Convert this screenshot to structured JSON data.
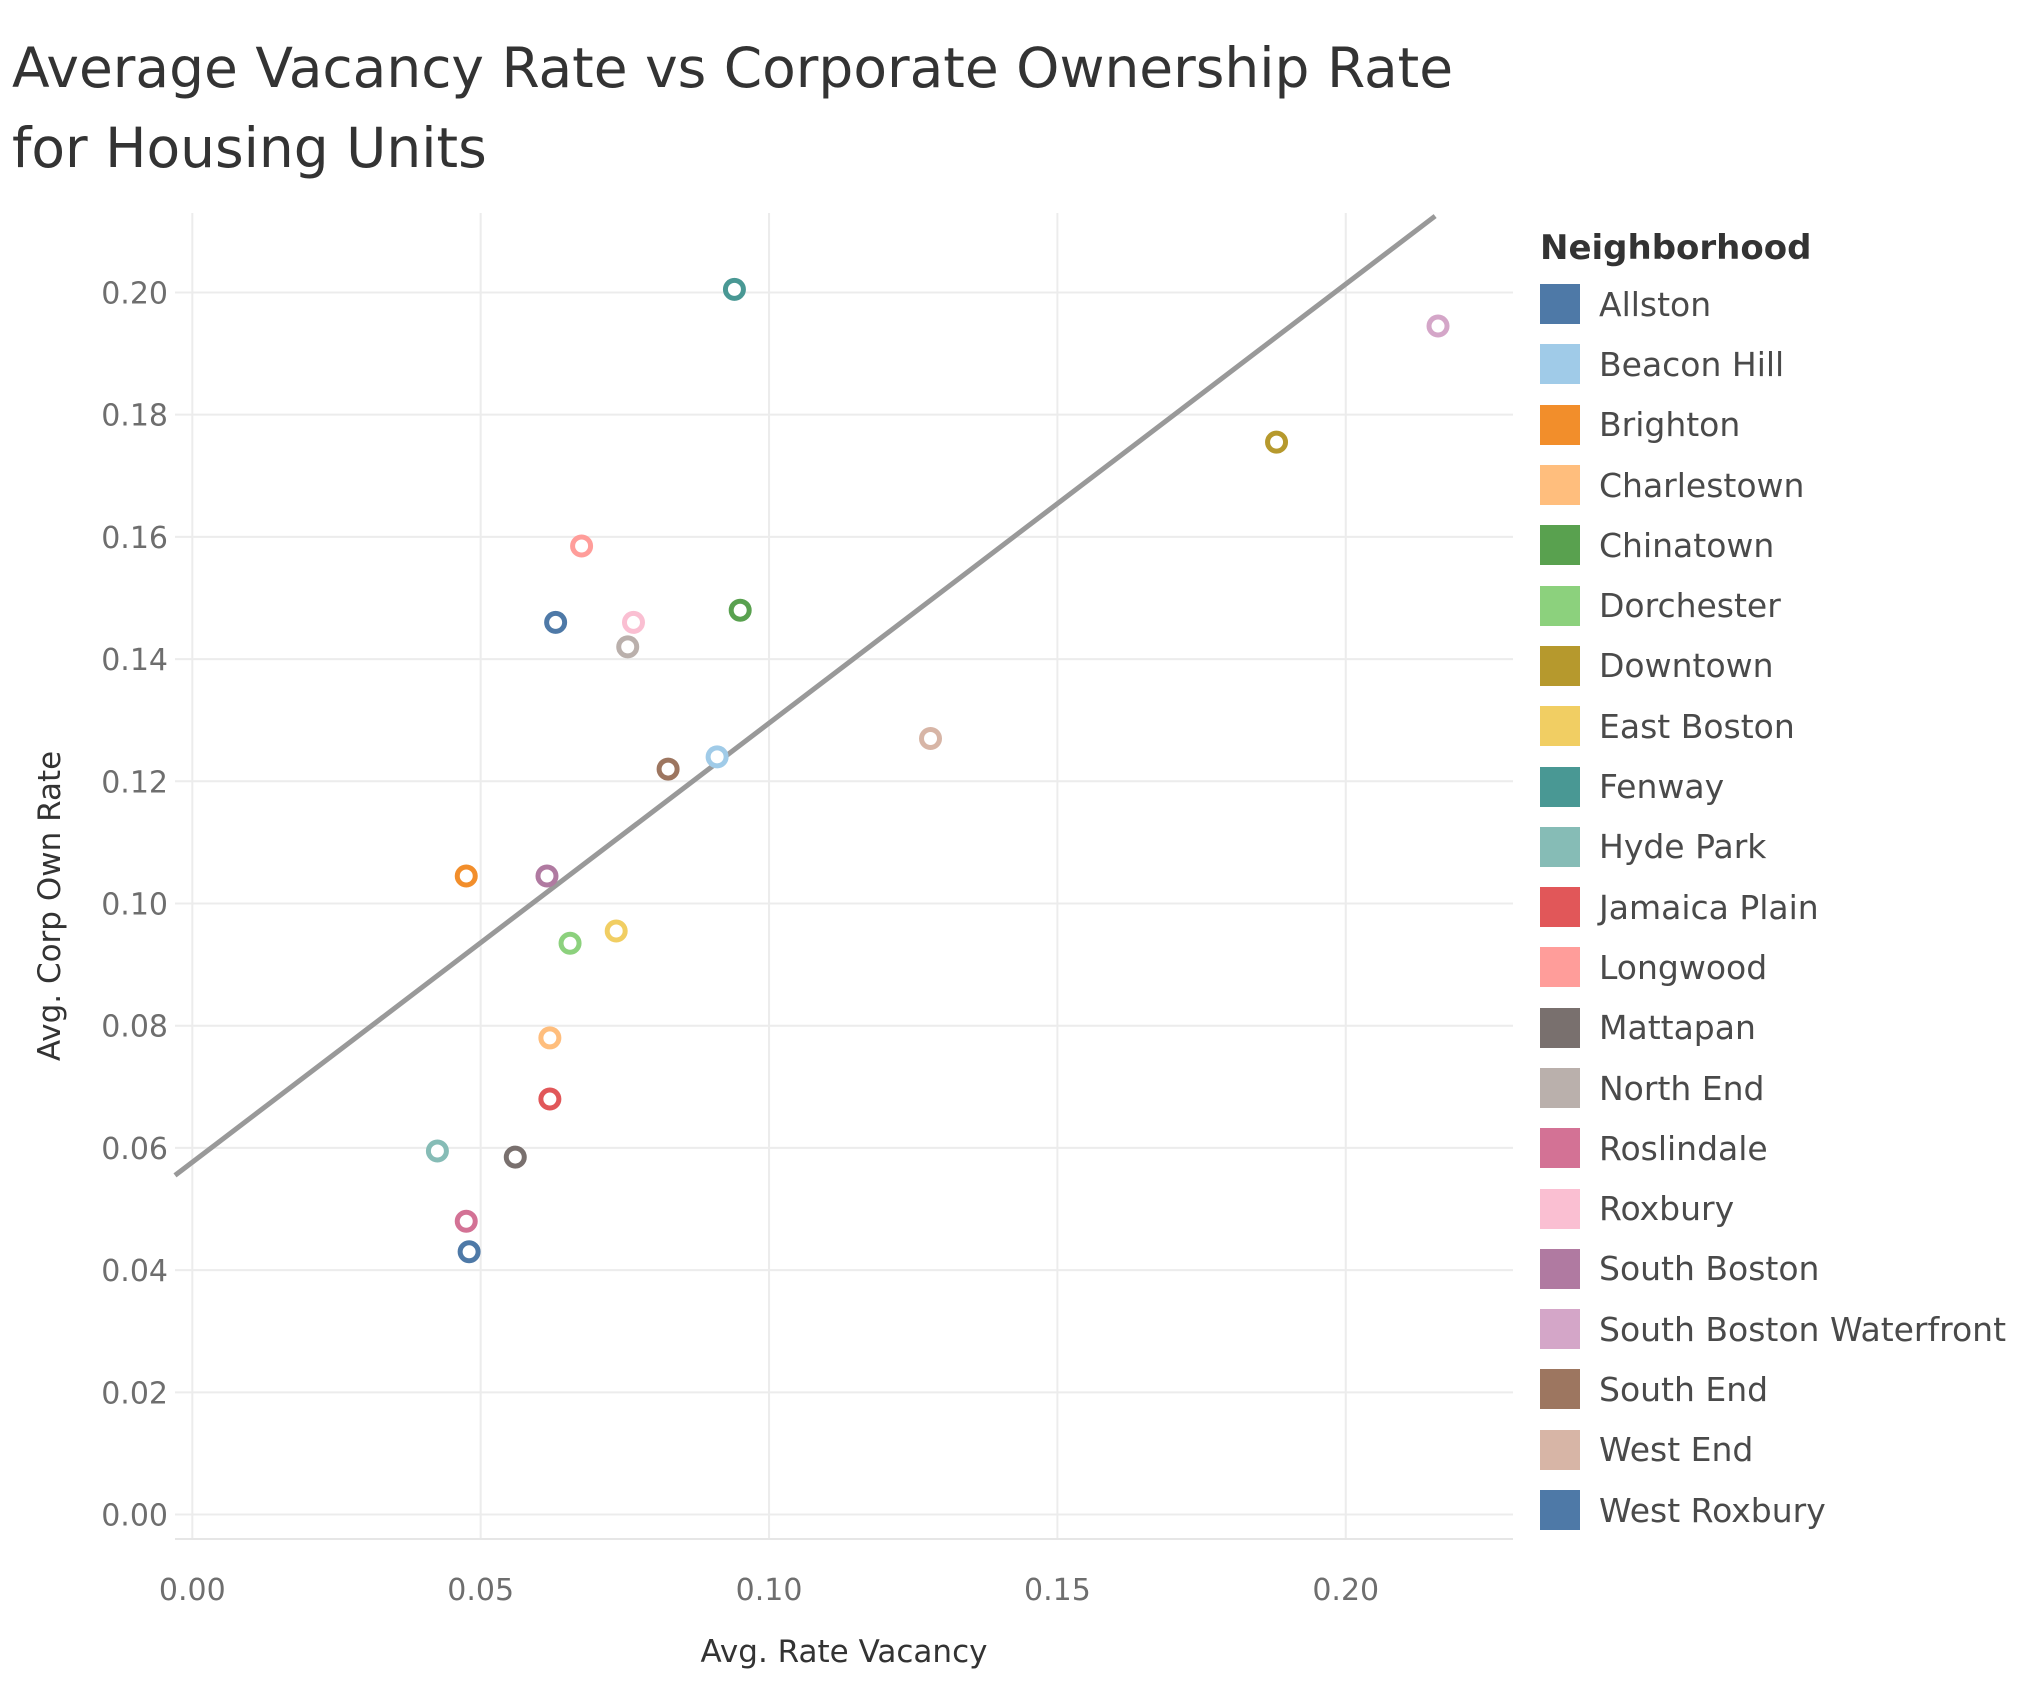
{
  "chart_data": {
    "type": "scatter",
    "title": "Average Vacancy Rate vs Corporate Ownership Rate for Housing Units",
    "xlabel": "Avg. Rate Vacancy",
    "ylabel": "Avg. Corp Own Rate",
    "xlim": [
      -0.003,
      0.229
    ],
    "ylim": [
      -0.004,
      0.213
    ],
    "xticks": [
      "0.00",
      "0.05",
      "0.10",
      "0.15",
      "0.20"
    ],
    "yticks": [
      "0.00",
      "0.02",
      "0.04",
      "0.06",
      "0.08",
      "0.10",
      "0.12",
      "0.14",
      "0.16",
      "0.18",
      "0.20"
    ],
    "grid": true,
    "legend_position": "right",
    "legend_title": "Neighborhood",
    "trend_line": {
      "x": [
        -0.003,
        0.2155
      ],
      "y": [
        0.0555,
        0.2125
      ],
      "color": "#999999"
    },
    "series": [
      {
        "name": "Allston",
        "color": "#4e79a7",
        "x": 0.063,
        "y": 0.146
      },
      {
        "name": "Beacon Hill",
        "color": "#a0cbe8",
        "x": 0.091,
        "y": 0.124
      },
      {
        "name": "Brighton",
        "color": "#f28e2b",
        "x": 0.0475,
        "y": 0.1045
      },
      {
        "name": "Charlestown",
        "color": "#ffbe7d",
        "x": 0.062,
        "y": 0.078
      },
      {
        "name": "Chinatown",
        "color": "#59a14f",
        "x": 0.095,
        "y": 0.148
      },
      {
        "name": "Dorchester",
        "color": "#8cd17d",
        "x": 0.0655,
        "y": 0.0935
      },
      {
        "name": "Downtown",
        "color": "#b6992d",
        "x": 0.188,
        "y": 0.1755
      },
      {
        "name": "East Boston",
        "color": "#f1ce63",
        "x": 0.0735,
        "y": 0.0955
      },
      {
        "name": "Fenway",
        "color": "#499894",
        "x": 0.094,
        "y": 0.2005
      },
      {
        "name": "Hyde Park",
        "color": "#86bcb6",
        "x": 0.0425,
        "y": 0.0595
      },
      {
        "name": "Jamaica Plain",
        "color": "#e15759",
        "x": 0.062,
        "y": 0.068
      },
      {
        "name": "Longwood",
        "color": "#ff9d9a",
        "x": 0.0675,
        "y": 0.1585
      },
      {
        "name": "Mattapan",
        "color": "#79706e",
        "x": 0.056,
        "y": 0.0585
      },
      {
        "name": "North End",
        "color": "#bab0ac",
        "x": 0.0755,
        "y": 0.142
      },
      {
        "name": "Roslindale",
        "color": "#d37295",
        "x": 0.0475,
        "y": 0.048
      },
      {
        "name": "Roxbury",
        "color": "#fabfd2",
        "x": 0.0765,
        "y": 0.146
      },
      {
        "name": "South Boston",
        "color": "#b07aa1",
        "x": 0.0615,
        "y": 0.1045
      },
      {
        "name": "South Boston Waterfront",
        "color": "#d4a6c8",
        "x": 0.216,
        "y": 0.1945
      },
      {
        "name": "South End",
        "color": "#9d7660",
        "x": 0.0825,
        "y": 0.122
      },
      {
        "name": "West End",
        "color": "#d7b5a6",
        "x": 0.128,
        "y": 0.127
      },
      {
        "name": "West Roxbury",
        "color": "#4e79a7",
        "x": 0.048,
        "y": 0.043
      }
    ]
  }
}
